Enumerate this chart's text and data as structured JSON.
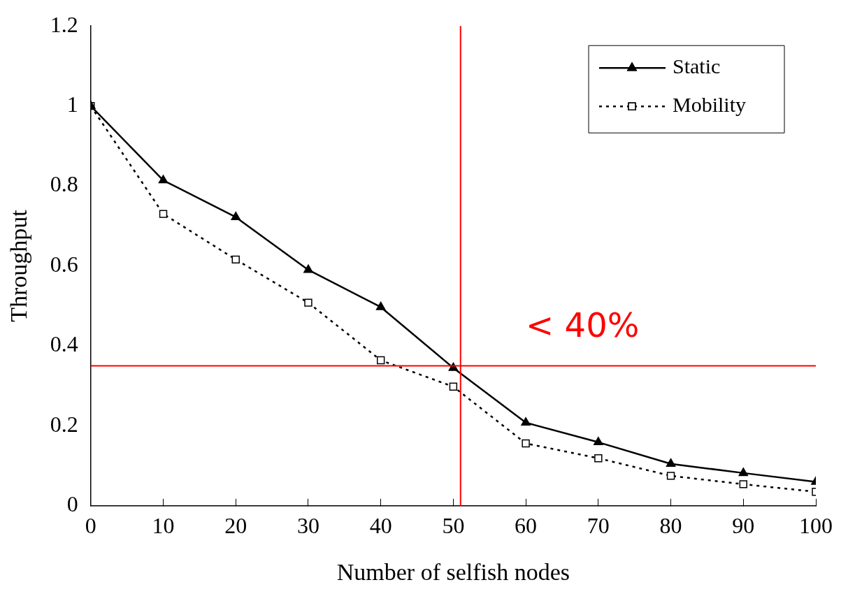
{
  "chart_data": {
    "type": "line",
    "xlabel": "Number of selfish nodes",
    "ylabel": "Throughput",
    "x": [
      0,
      10,
      20,
      30,
      40,
      50,
      60,
      70,
      80,
      90,
      100
    ],
    "series": [
      {
        "name": "Static",
        "color": "#000000",
        "marker": "triangle",
        "line_style": "solid",
        "values": [
          1,
          0.814,
          0.722,
          0.59,
          0.497,
          0.345,
          0.208,
          0.159,
          0.105,
          0.082,
          0.06
        ]
      },
      {
        "name": "Mobility",
        "color": "#000000",
        "marker": "square",
        "line_style": "dotted",
        "values": [
          1,
          0.73,
          0.616,
          0.508,
          0.364,
          0.298,
          0.156,
          0.119,
          0.075,
          0.054,
          0.035
        ]
      }
    ],
    "xlim": [
      0,
      100
    ],
    "xticks": [
      0,
      10,
      20,
      30,
      40,
      50,
      60,
      70,
      80,
      90,
      100
    ],
    "ylim": [
      0,
      1.2
    ],
    "yticks": [
      0,
      {
        "value": 0.2,
        "label": "0.2"
      },
      {
        "value": 0.4,
        "label": "0.4"
      },
      {
        "value": 0.6,
        "label": "0.6"
      },
      {
        "value": 0.8,
        "label": "0.8"
      },
      1,
      {
        "value": 1.2,
        "label": "1.2"
      }
    ],
    "grid": false,
    "legend": "top right",
    "ref_lines": [
      {
        "axis": "y",
        "value": 0.35,
        "color": "#ff0000"
      },
      {
        "axis": "x",
        "value": 51,
        "color": "#ff0000"
      }
    ],
    "annotations": [
      "< 40%"
    ]
  }
}
